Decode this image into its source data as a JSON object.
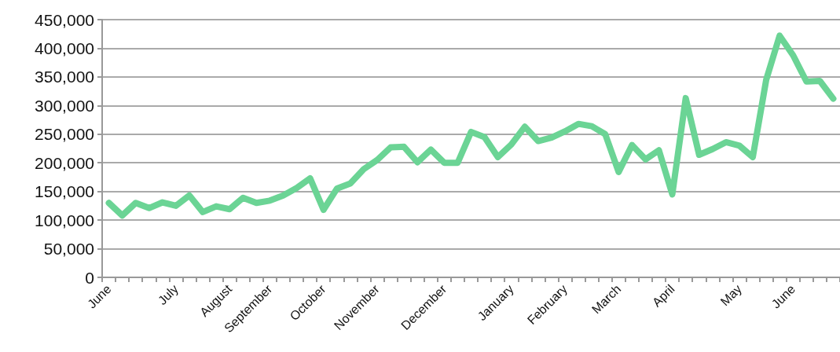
{
  "chart_data": {
    "type": "line",
    "categories": [
      "June",
      null,
      null,
      null,
      null,
      "July",
      null,
      null,
      null,
      "August",
      null,
      null,
      "September",
      null,
      null,
      null,
      "October",
      null,
      null,
      null,
      "November",
      null,
      null,
      null,
      null,
      "December",
      null,
      null,
      null,
      null,
      "January",
      null,
      null,
      null,
      "February",
      null,
      null,
      null,
      "March",
      null,
      null,
      null,
      "April",
      null,
      null,
      null,
      null,
      "May",
      null,
      null,
      null,
      "June",
      null,
      null,
      null
    ],
    "series": [
      {
        "color": "#6bd495",
        "values": [
          130000,
          108000,
          130000,
          121000,
          131000,
          125000,
          143000,
          114000,
          124000,
          119000,
          139000,
          130000,
          134000,
          143000,
          156000,
          173000,
          118000,
          155000,
          164000,
          189000,
          205000,
          227000,
          228000,
          201000,
          223000,
          200000,
          200000,
          254000,
          245000,
          210000,
          232000,
          263000,
          238000,
          244000,
          255000,
          268000,
          264000,
          250000,
          184000,
          231000,
          206000,
          222000,
          145000,
          313000,
          214000,
          224000,
          236000,
          230000,
          210000,
          345000,
          422000,
          388000,
          342000,
          343000,
          312000
        ]
      }
    ],
    "ylim": [
      0,
      450000
    ],
    "yticks": [
      0,
      {
        "value": 50000,
        "label": "50,000"
      },
      {
        "value": 100000,
        "label": "100,000"
      },
      {
        "value": 150000,
        "label": "150,000"
      },
      {
        "value": 200000,
        "label": "200,000"
      },
      {
        "value": 250000,
        "label": "250,000"
      },
      {
        "value": 300000,
        "label": "300,000"
      },
      {
        "value": 350000,
        "label": "350,000"
      },
      {
        "value": 400000,
        "label": "400,000"
      },
      {
        "value": 450000,
        "label": "450,000"
      }
    ],
    "grid": "y",
    "line_style": "solid"
  }
}
